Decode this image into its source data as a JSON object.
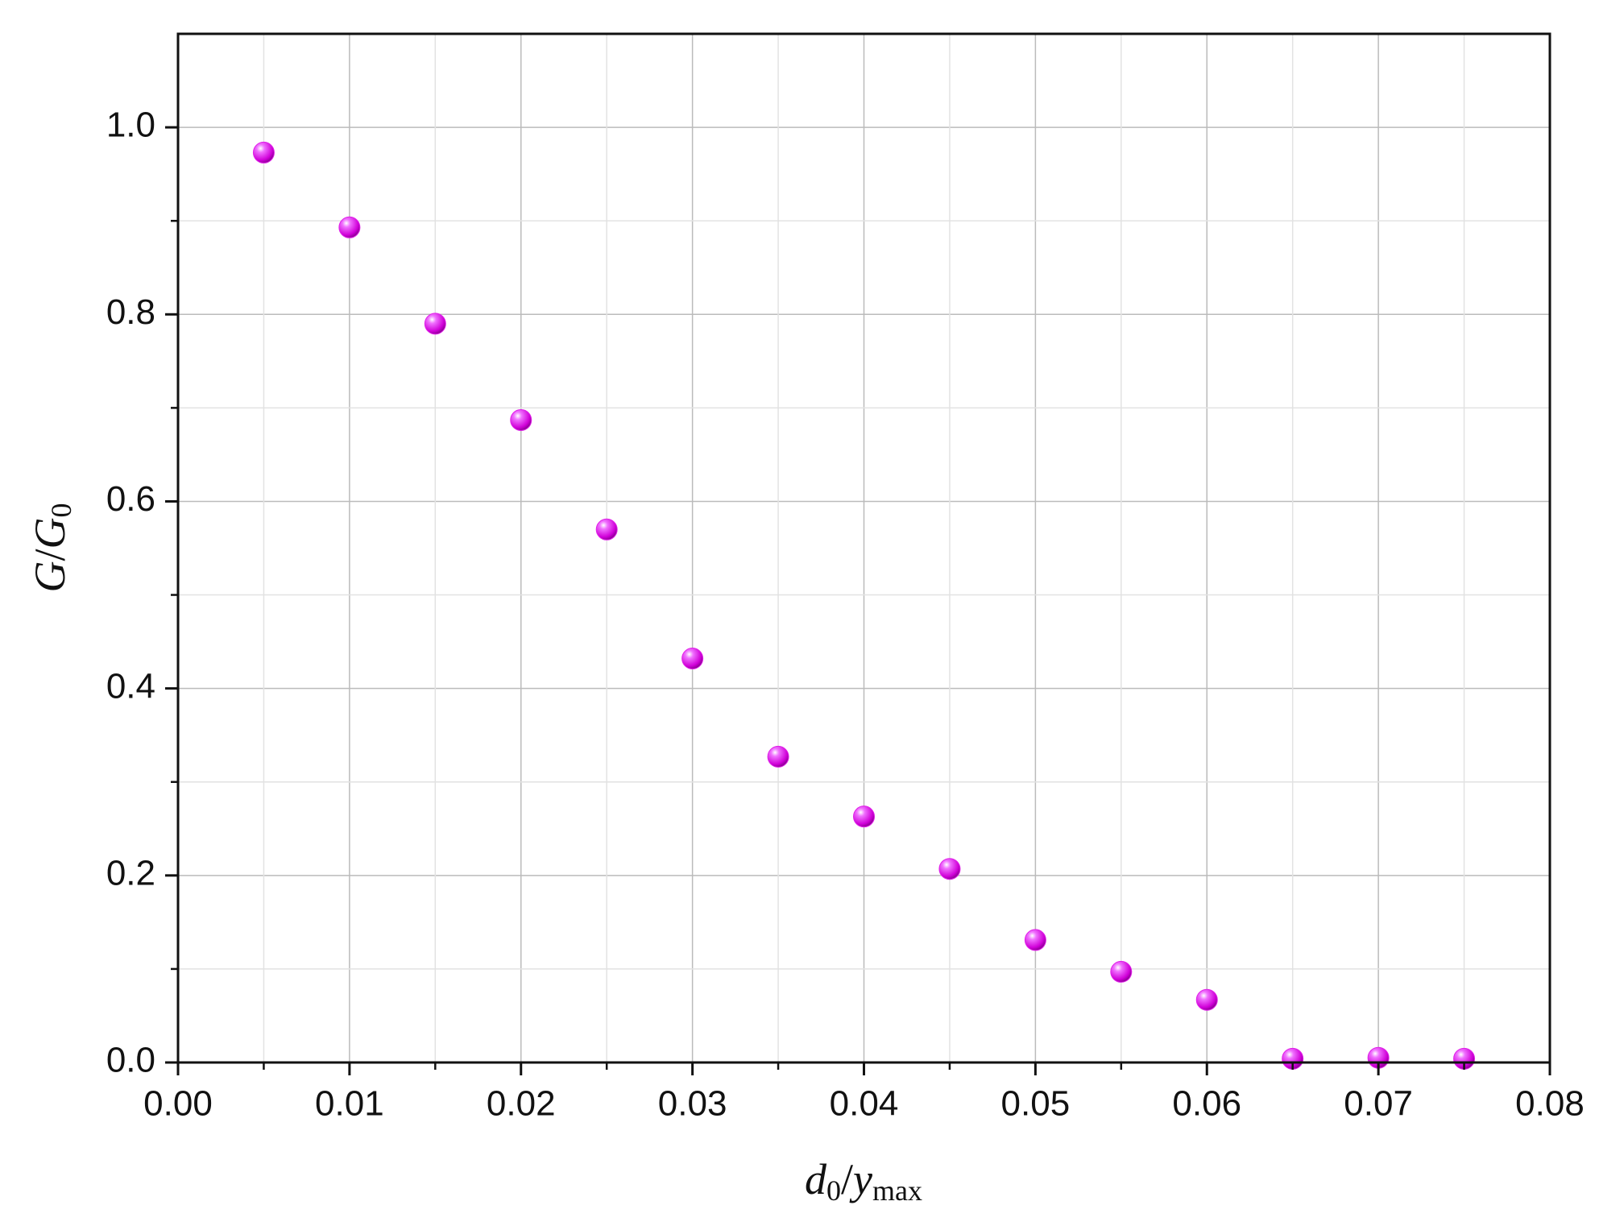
{
  "chart_data": {
    "type": "scatter",
    "xlabel": [
      "d",
      "0",
      "/",
      "y",
      "max"
    ],
    "ylabel": [
      "G",
      "/",
      "G",
      "0"
    ],
    "series": [
      {
        "color": "#e020e8",
        "x": [
          0.005,
          0.01,
          0.015,
          0.02,
          0.025,
          0.03,
          0.035,
          0.04,
          0.045,
          0.05,
          0.055,
          0.06,
          0.065,
          0.07,
          0.075
        ],
        "values": [
          0.973,
          0.893,
          0.79,
          0.687,
          0.57,
          0.432,
          0.327,
          0.263,
          0.207,
          0.131,
          0.097,
          0.067,
          0.004,
          0.005,
          0.004
        ]
      }
    ],
    "xlim": [
      0,
      0.08
    ],
    "ylim": [
      0,
      1.1
    ],
    "xticks": [
      {
        "value": 0,
        "label": "0.00"
      },
      {
        "value": 0.01,
        "label": "0.01"
      },
      {
        "value": 0.02,
        "label": "0.02"
      },
      {
        "value": 0.03,
        "label": "0.03"
      },
      {
        "value": 0.04,
        "label": "0.04"
      },
      {
        "value": 0.05,
        "label": "0.05"
      },
      {
        "value": 0.06,
        "label": "0.06"
      },
      {
        "value": 0.07,
        "label": "0.07"
      },
      {
        "value": 0.08,
        "label": "0.08"
      }
    ],
    "yticks": [
      {
        "value": 0,
        "label": "0.0"
      },
      {
        "value": 0.2,
        "label": "0.2"
      },
      {
        "value": 0.4,
        "label": "0.4"
      },
      {
        "value": 0.6,
        "label": "0.6"
      },
      {
        "value": 0.8,
        "label": "0.8"
      },
      {
        "value": 1,
        "label": "1.0"
      }
    ],
    "grid": true
  }
}
